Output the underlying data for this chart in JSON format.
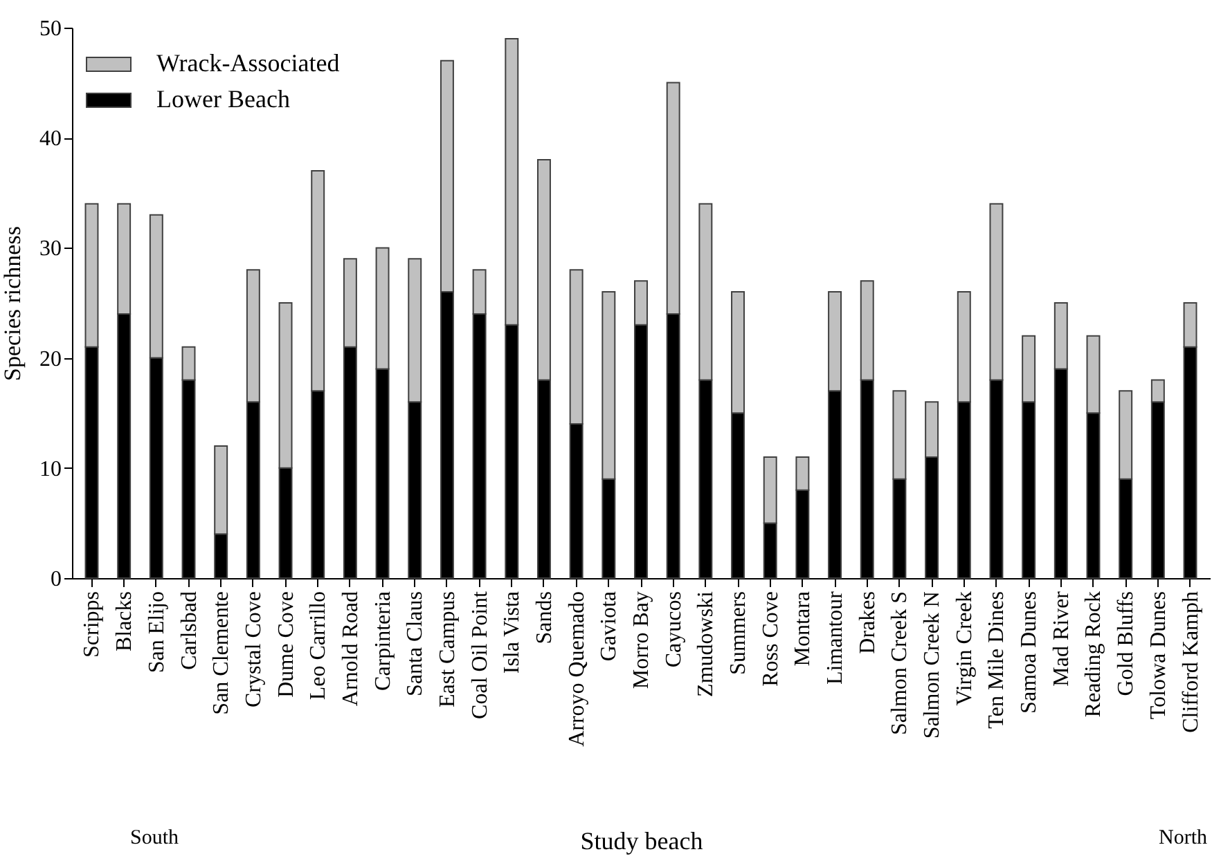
{
  "chart_data": {
    "type": "bar",
    "stacked": true,
    "xlabel": "Study beach",
    "ylabel": "Species richness",
    "categories": [
      "Scripps",
      "Blacks",
      "San Elijo",
      "Carlsbad",
      "San Clemente",
      "Crystal Cove",
      "Dume Cove",
      "Leo Carrillo",
      "Arnold Road",
      "Carpinteria",
      "Santa Claus",
      "East Campus",
      "Coal Oil Point",
      "Isla Vista",
      "Sands",
      "Arroyo Quemado",
      "Gaviota",
      "Morro Bay",
      "Cayucos",
      "Zmudowski",
      "Summers",
      "Ross Cove",
      "Montara",
      "Limantour",
      "Drakes",
      "Salmon Creek S",
      "Salmon Creek N",
      "Virgin Creek",
      "Ten Mile Dines",
      "Samoa Dunes",
      "Mad River",
      "Reading Rock",
      "Gold Bluffs",
      "Tolowa Dunes",
      "Clifford Kamph"
    ],
    "series": [
      {
        "name": "Lower Beach",
        "color": "#000000",
        "values": [
          21,
          24,
          20,
          18,
          4,
          16,
          10,
          17,
          21,
          19,
          16,
          26,
          24,
          23,
          18,
          14,
          9,
          23,
          24,
          18,
          15,
          5,
          8,
          17,
          18,
          9,
          11,
          16,
          18,
          16,
          19,
          15,
          9,
          16,
          21
        ]
      },
      {
        "name": "Wrack-Associated",
        "color": "#c0c0c0",
        "values": [
          13,
          10,
          13,
          3,
          8,
          12,
          15,
          20,
          8,
          11,
          13,
          21,
          4,
          26,
          20,
          14,
          17,
          4,
          21,
          16,
          11,
          6,
          3,
          9,
          9,
          8,
          5,
          10,
          16,
          6,
          6,
          7,
          8,
          2,
          4
        ]
      }
    ],
    "ylim": [
      0,
      50
    ],
    "yticks": [
      0,
      10,
      20,
      30,
      40,
      50
    ],
    "grid": false,
    "legend": "top left",
    "annotations": [
      "South",
      "North"
    ]
  }
}
